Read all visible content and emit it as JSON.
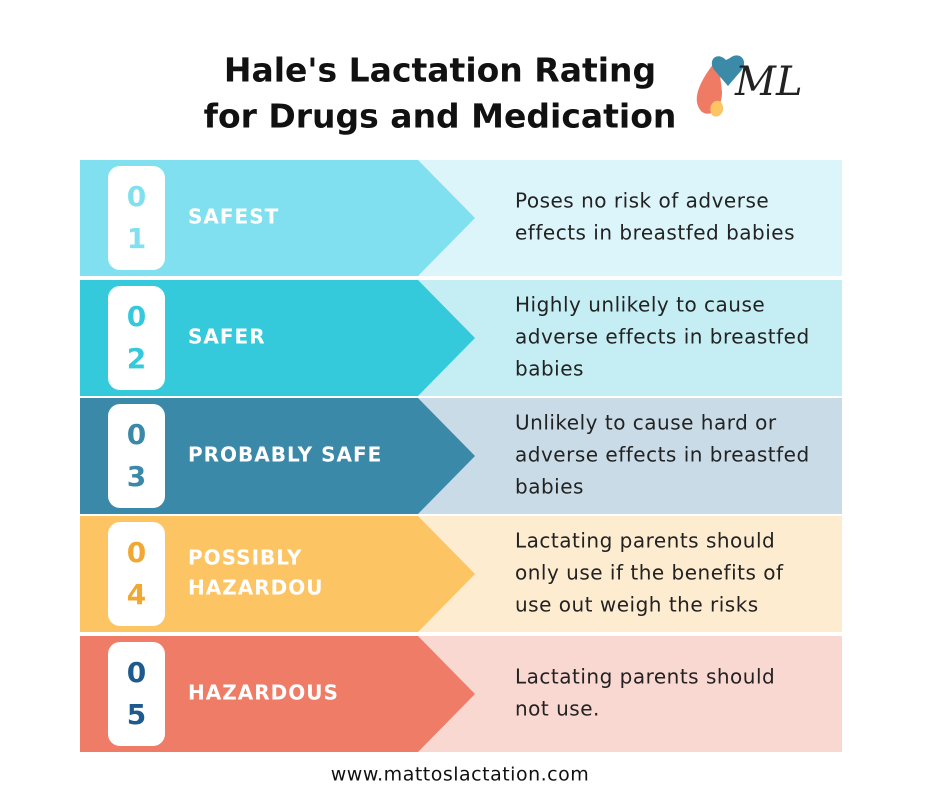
{
  "header": {
    "title_lines": [
      "Hale's Lactation Rating",
      "for Drugs and Medication"
    ],
    "logo": "ML"
  },
  "rows": [
    {
      "digits": [
        "0",
        "1"
      ],
      "label_lines": [
        "SAFEST"
      ],
      "description_lines": [
        "Poses no risk of adverse",
        "effects in breastfed babies"
      ]
    },
    {
      "digits": [
        "0",
        "2"
      ],
      "label_lines": [
        "SAFER"
      ],
      "description_lines": [
        "Highly unlikely to cause",
        "adverse effects in breastfed",
        "babies"
      ]
    },
    {
      "digits": [
        "0",
        "3"
      ],
      "label_lines": [
        "PROBABLY SAFE"
      ],
      "description_lines": [
        "Unlikely to cause hard or",
        "adverse effects in breastfed",
        "babies"
      ]
    },
    {
      "digits": [
        "0",
        "4"
      ],
      "label_lines": [
        "POSSIBLY",
        "HAZARDOU"
      ],
      "description_lines": [
        "Lactating parents should",
        "only use if the benefits of",
        "use out weigh the risks"
      ]
    },
    {
      "digits": [
        "0",
        "5"
      ],
      "label_lines": [
        "HAZARDOUS"
      ],
      "description_lines": [
        "Lactating parents should",
        "not use."
      ]
    }
  ],
  "footer": {
    "url": "www.mattoslactation.com"
  }
}
